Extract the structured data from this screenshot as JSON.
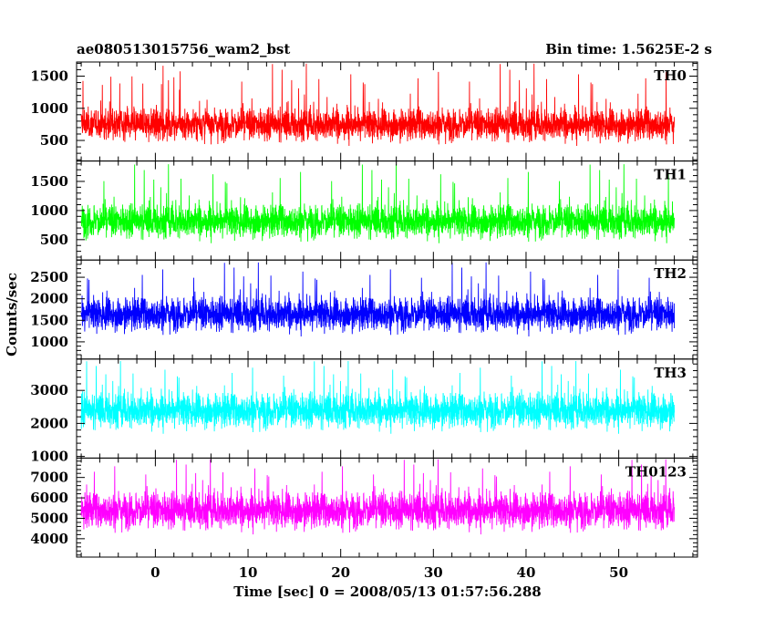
{
  "chart_data": {
    "type": "line",
    "title": "ae080513015756_wam2_bst",
    "subtitle": "Bin time: 1.5625E-2 s",
    "xlabel": "Time [sec] 0 = 2008/05/13 01:57:56.288",
    "ylabel": "Counts/sec",
    "xlim": [
      -8.5,
      58.5
    ],
    "data_x_range": [
      -8,
      56
    ],
    "x_ticks": [
      0,
      10,
      20,
      30,
      40,
      50
    ],
    "grid": false,
    "panels": [
      {
        "name": "TH0",
        "color": "#ff0000",
        "ylim": [
          180,
          1720
        ],
        "y_ticks": [
          500,
          1000,
          1500
        ],
        "base": 320,
        "mean": 750,
        "spread": 210,
        "peak": 1700,
        "values": []
      },
      {
        "name": "TH1",
        "color": "#00ff00",
        "ylim": [
          150,
          1850
        ],
        "y_ticks": [
          500,
          1000,
          1500
        ],
        "base": 280,
        "mean": 820,
        "spread": 240,
        "peak": 1800,
        "values": []
      },
      {
        "name": "TH2",
        "color": "#0000ff",
        "ylim": [
          600,
          2900
        ],
        "y_ticks": [
          1000,
          1500,
          2000,
          2500
        ],
        "base": 900,
        "mean": 1650,
        "spread": 330,
        "peak": 2850,
        "values": []
      },
      {
        "name": "TH3",
        "color": "#00ffff",
        "ylim": [
          950,
          3950
        ],
        "y_ticks": [
          1000,
          2000,
          3000
        ],
        "base": 1200,
        "mean": 2400,
        "spread": 450,
        "peak": 3900,
        "values": []
      },
      {
        "name": "TH0123",
        "color": "#ff00ff",
        "ylim": [
          3100,
          7950
        ],
        "y_ticks": [
          4000,
          5000,
          6000,
          7000
        ],
        "base": 3500,
        "mean": 5400,
        "spread": 750,
        "peak": 7900,
        "values": []
      }
    ]
  }
}
